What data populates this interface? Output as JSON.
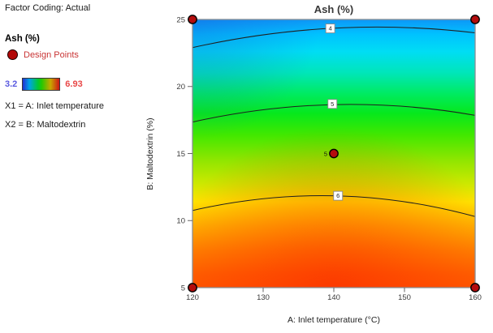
{
  "legend": {
    "factor_coding": "Factor Coding: Actual",
    "response_label": "Ash (%)",
    "design_points_label": "Design Points",
    "scale": {
      "min": "3.2",
      "max": "6.93",
      "min_color": "#5b5be0",
      "max_color": "#e84848"
    },
    "x1": "X1 = A: Inlet temperature",
    "x2": "X2 = B: Maltodextrin"
  },
  "chart_data": {
    "type": "heatmap",
    "subtype": "contour-response-surface",
    "title": "Ash (%)",
    "xlabel": "A: Inlet temperature (°C)",
    "ylabel": "B: Maltodextrin (%)",
    "xlim": [
      120,
      160
    ],
    "ylim": [
      5,
      25
    ],
    "xticks": [
      120,
      130,
      140,
      150,
      160
    ],
    "yticks": [
      5,
      10,
      15,
      20,
      25
    ],
    "response_range": [
      3.2,
      6.93
    ],
    "grid": false,
    "contours": [
      {
        "value": 4,
        "points": [
          [
            120,
            22.9
          ],
          [
            140,
            24.35
          ],
          [
            160,
            24.0
          ]
        ],
        "label_at": [
          139.5,
          24.33
        ]
      },
      {
        "value": 5,
        "points": [
          [
            120,
            17.35
          ],
          [
            140,
            18.65
          ],
          [
            160,
            17.85
          ]
        ],
        "label_at": [
          139.8,
          18.7
        ]
      },
      {
        "value": 6,
        "points": [
          [
            120,
            10.75
          ],
          [
            140,
            11.85
          ],
          [
            160,
            10.3
          ]
        ],
        "label_at": [
          140.6,
          11.85
        ]
      }
    ],
    "design_points": [
      {
        "x": 120,
        "y": 25
      },
      {
        "x": 160,
        "y": 25
      },
      {
        "x": 120,
        "y": 5
      },
      {
        "x": 160,
        "y": 5
      },
      {
        "x": 140,
        "y": 15,
        "count": 5
      }
    ],
    "design_point_color": "#b40d0d",
    "contour_line_color": "#1f1f1f",
    "frame_color": "#8a8f94",
    "colormap": [
      {
        "offset": 0.0,
        "color": "#0d97f7"
      },
      {
        "offset": 0.055,
        "color": "#00c2ff"
      },
      {
        "offset": 0.12,
        "color": "#00ddf4"
      },
      {
        "offset": 0.2,
        "color": "#00e6b8"
      },
      {
        "offset": 0.28,
        "color": "#00eb5e"
      },
      {
        "offset": 0.35,
        "color": "#06e81c"
      },
      {
        "offset": 0.43,
        "color": "#41e800"
      },
      {
        "offset": 0.52,
        "color": "#8ce600"
      },
      {
        "offset": 0.61,
        "color": "#cbe800"
      },
      {
        "offset": 0.68,
        "color": "#ffe400"
      },
      {
        "offset": 0.77,
        "color": "#ffb100"
      },
      {
        "offset": 0.86,
        "color": "#ff8400"
      },
      {
        "offset": 0.95,
        "color": "#ff6200"
      },
      {
        "offset": 1.0,
        "color": "#ff5a00"
      }
    ]
  }
}
